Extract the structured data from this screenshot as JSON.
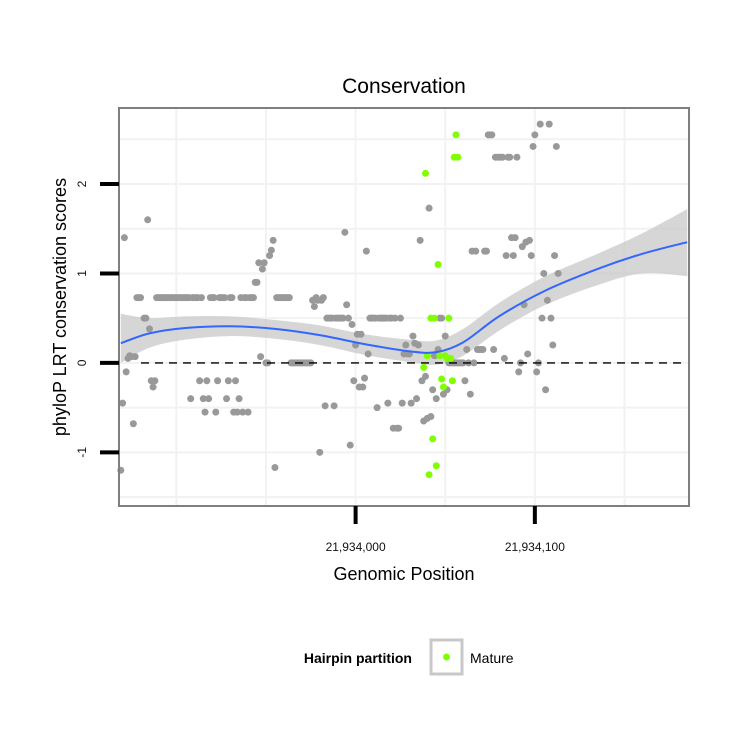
{
  "chart_data": {
    "type": "scatter",
    "title": "Conservation",
    "xlabel": "Genomic Position",
    "ylabel": "phyloP LRT conservation scores",
    "xlim": [
      21933868,
      21934186
    ],
    "ylim": [
      -1.6,
      2.85
    ],
    "x_ticks": [
      {
        "value": 21934000,
        "label": "21,934,000"
      },
      {
        "value": 21934100,
        "label": "21,934,100"
      }
    ],
    "y_ticks": [
      {
        "value": -1,
        "label": "-1"
      },
      {
        "value": 0,
        "label": "0"
      },
      {
        "value": 1,
        "label": "1"
      },
      {
        "value": 2,
        "label": "2"
      }
    ],
    "grid": true,
    "reference_line": {
      "y": 0,
      "style": "dashed"
    },
    "colors": {
      "other": "#999999",
      "mature": "#7fff00",
      "smooth": "#3366ff",
      "ribbon": "#c8c8c8",
      "panel_border": "#7f7f7f",
      "grid": "#f2f2f2"
    },
    "legend": {
      "title": "Hairpin partition",
      "position": "bottom",
      "entries": [
        {
          "label": "Mature",
          "color": "#7fff00"
        }
      ]
    },
    "series": [
      {
        "name": "",
        "color": "#999999",
        "points": [
          [
            21933869,
            -1.2
          ],
          [
            21933870,
            -0.45
          ],
          [
            21933871,
            1.4
          ],
          [
            21933872,
            -0.1
          ],
          [
            21933873,
            0.05
          ],
          [
            21933874,
            0.08
          ],
          [
            21933875,
            0.07
          ],
          [
            21933876,
            -0.68
          ],
          [
            21933877,
            0.07
          ],
          [
            21933878,
            0.73
          ],
          [
            21933879,
            0.73
          ],
          [
            21933880,
            0.73
          ],
          [
            21933882,
            0.5
          ],
          [
            21933883,
            0.5
          ],
          [
            21933884,
            1.6
          ],
          [
            21933885,
            0.38
          ],
          [
            21933886,
            -0.2
          ],
          [
            21933887,
            -0.27
          ],
          [
            21933888,
            -0.2
          ],
          [
            21933889,
            0.73
          ],
          [
            21933890,
            0.73
          ],
          [
            21933891,
            0.73
          ],
          [
            21933892,
            0.73
          ],
          [
            21933893,
            0.73
          ],
          [
            21933894,
            0.73
          ],
          [
            21933895,
            0.73
          ],
          [
            21933896,
            0.73
          ],
          [
            21933897,
            0.73
          ],
          [
            21933898,
            0.73
          ],
          [
            21933899,
            0.73
          ],
          [
            21933900,
            0.73
          ],
          [
            21933901,
            0.73
          ],
          [
            21933902,
            0.73
          ],
          [
            21933903,
            0.73
          ],
          [
            21933904,
            0.73
          ],
          [
            21933905,
            0.73
          ],
          [
            21933906,
            0.73
          ],
          [
            21933907,
            0.73
          ],
          [
            21933908,
            -0.4
          ],
          [
            21933909,
            0.73
          ],
          [
            21933910,
            0.73
          ],
          [
            21933911,
            0.73
          ],
          [
            21933912,
            0.73
          ],
          [
            21933913,
            -0.2
          ],
          [
            21933914,
            0.73
          ],
          [
            21933915,
            -0.4
          ],
          [
            21933916,
            -0.55
          ],
          [
            21933917,
            -0.2
          ],
          [
            21933918,
            -0.4
          ],
          [
            21933919,
            0.73
          ],
          [
            21933920,
            0.73
          ],
          [
            21933921,
            0.73
          ],
          [
            21933922,
            -0.55
          ],
          [
            21933923,
            -0.2
          ],
          [
            21933924,
            0.73
          ],
          [
            21933925,
            0.73
          ],
          [
            21933926,
            0.73
          ],
          [
            21933927,
            0.73
          ],
          [
            21933928,
            -0.4
          ],
          [
            21933929,
            -0.2
          ],
          [
            21933930,
            0.73
          ],
          [
            21933931,
            0.73
          ],
          [
            21933932,
            -0.55
          ],
          [
            21933933,
            -0.2
          ],
          [
            21933934,
            -0.55
          ],
          [
            21933935,
            -0.4
          ],
          [
            21933936,
            0.73
          ],
          [
            21933937,
            -0.55
          ],
          [
            21933938,
            0.73
          ],
          [
            21933939,
            0.73
          ],
          [
            21933940,
            -0.55
          ],
          [
            21933941,
            0.73
          ],
          [
            21933942,
            0.73
          ],
          [
            21933943,
            0.73
          ],
          [
            21933944,
            0.9
          ],
          [
            21933945,
            0.9
          ],
          [
            21933946,
            1.12
          ],
          [
            21933947,
            0.07
          ],
          [
            21933948,
            1.05
          ],
          [
            21933949,
            1.12
          ],
          [
            21933950,
            0.0
          ],
          [
            21933951,
            0.0
          ],
          [
            21933952,
            1.2
          ],
          [
            21933953,
            1.26
          ],
          [
            21933954,
            1.37
          ],
          [
            21933955,
            -1.17
          ],
          [
            21933956,
            0.73
          ],
          [
            21933957,
            0.73
          ],
          [
            21933958,
            0.73
          ],
          [
            21933959,
            0.73
          ],
          [
            21933960,
            0.73
          ],
          [
            21933961,
            0.73
          ],
          [
            21933962,
            0.73
          ],
          [
            21933963,
            0.73
          ],
          [
            21933964,
            0.0
          ],
          [
            21933965,
            0.0
          ],
          [
            21933966,
            0.0
          ],
          [
            21933967,
            0.0
          ],
          [
            21933968,
            0.0
          ],
          [
            21933969,
            0.0
          ],
          [
            21933970,
            0.0
          ],
          [
            21933971,
            0.0
          ],
          [
            21933972,
            0.0
          ],
          [
            21933973,
            0.0
          ],
          [
            21933974,
            0.0
          ],
          [
            21933975,
            0.0
          ],
          [
            21933976,
            0.7
          ],
          [
            21933977,
            0.63
          ],
          [
            21933978,
            0.73
          ],
          [
            21933979,
            0.7
          ],
          [
            21933980,
            -1.0
          ],
          [
            21933981,
            0.7
          ],
          [
            21933982,
            0.73
          ],
          [
            21933983,
            -0.48
          ],
          [
            21933984,
            0.5
          ],
          [
            21933985,
            0.5
          ],
          [
            21933986,
            0.5
          ],
          [
            21933987,
            0.5
          ],
          [
            21933988,
            -0.48
          ],
          [
            21933989,
            0.5
          ],
          [
            21933990,
            0.5
          ],
          [
            21933991,
            0.5
          ],
          [
            21933992,
            0.5
          ],
          [
            21933993,
            0.5
          ],
          [
            21933994,
            1.46
          ],
          [
            21933995,
            0.65
          ],
          [
            21933996,
            0.5
          ],
          [
            21933997,
            -0.92
          ],
          [
            21933998,
            0.43
          ],
          [
            21933999,
            -0.2
          ],
          [
            21934000,
            0.2
          ],
          [
            21934001,
            0.32
          ],
          [
            21934002,
            -0.27
          ],
          [
            21934003,
            0.32
          ],
          [
            21934004,
            -0.27
          ],
          [
            21934005,
            -0.17
          ],
          [
            21934006,
            1.25
          ],
          [
            21934007,
            0.1
          ],
          [
            21934008,
            0.5
          ],
          [
            21934009,
            0.5
          ],
          [
            21934010,
            0.5
          ],
          [
            21934011,
            0.5
          ],
          [
            21934012,
            -0.5
          ],
          [
            21934013,
            0.5
          ],
          [
            21934014,
            0.5
          ],
          [
            21934015,
            0.5
          ],
          [
            21934016,
            0.5
          ],
          [
            21934017,
            0.5
          ],
          [
            21934018,
            -0.45
          ],
          [
            21934019,
            0.5
          ],
          [
            21934020,
            0.5
          ],
          [
            21934021,
            -0.73
          ],
          [
            21934022,
            0.5
          ],
          [
            21934023,
            -0.73
          ],
          [
            21934024,
            -0.73
          ],
          [
            21934025,
            0.5
          ],
          [
            21934026,
            -0.45
          ],
          [
            21934027,
            0.1
          ],
          [
            21934028,
            0.2
          ],
          [
            21934029,
            0.1
          ],
          [
            21934030,
            0.1
          ],
          [
            21934031,
            -0.45
          ],
          [
            21934032,
            0.3
          ],
          [
            21934033,
            0.22
          ],
          [
            21934034,
            -0.4
          ],
          [
            21934035,
            0.2
          ],
          [
            21934036,
            1.37
          ],
          [
            21934037,
            -0.2
          ],
          [
            21934038,
            -0.65
          ],
          [
            21934039,
            -0.15
          ],
          [
            21934040,
            -0.62
          ],
          [
            21934041,
            1.73
          ],
          [
            21934042,
            -0.6
          ],
          [
            21934043,
            -0.3
          ],
          [
            21934044,
            0.08
          ],
          [
            21934045,
            -0.4
          ],
          [
            21934046,
            0.15
          ],
          [
            21934047,
            0.5
          ],
          [
            21934048,
            0.5
          ],
          [
            21934049,
            -0.35
          ],
          [
            21934050,
            0.3
          ],
          [
            21934051,
            -0.3
          ],
          [
            21934052,
            0.0
          ],
          [
            21934053,
            0.0
          ],
          [
            21934054,
            0.0
          ],
          [
            21934055,
            0.0
          ],
          [
            21934056,
            0.0
          ],
          [
            21934057,
            0.0
          ],
          [
            21934058,
            0.0
          ],
          [
            21934059,
            0.0
          ],
          [
            21934060,
            0.0
          ],
          [
            21934061,
            -0.2
          ],
          [
            21934062,
            0.15
          ],
          [
            21934063,
            0.0
          ],
          [
            21934064,
            -0.35
          ],
          [
            21934065,
            1.25
          ],
          [
            21934066,
            0.0
          ],
          [
            21934067,
            1.25
          ],
          [
            21934068,
            0.15
          ],
          [
            21934069,
            0.15
          ],
          [
            21934070,
            0.15
          ],
          [
            21934071,
            0.15
          ],
          [
            21934072,
            1.25
          ],
          [
            21934073,
            1.25
          ],
          [
            21934074,
            2.55
          ],
          [
            21934075,
            2.55
          ],
          [
            21934076,
            2.55
          ],
          [
            21934077,
            0.15
          ],
          [
            21934078,
            2.3
          ],
          [
            21934079,
            2.3
          ],
          [
            21934080,
            2.3
          ],
          [
            21934081,
            2.3
          ],
          [
            21934082,
            2.3
          ],
          [
            21934083,
            0.05
          ],
          [
            21934084,
            1.2
          ],
          [
            21934085,
            2.3
          ],
          [
            21934086,
            2.3
          ],
          [
            21934087,
            1.4
          ],
          [
            21934088,
            1.2
          ],
          [
            21934089,
            1.4
          ],
          [
            21934090,
            2.3
          ],
          [
            21934091,
            -0.1
          ],
          [
            21934092,
            0.0
          ],
          [
            21934093,
            1.3
          ],
          [
            21934094,
            0.65
          ],
          [
            21934095,
            1.35
          ],
          [
            21934096,
            0.1
          ],
          [
            21934097,
            1.37
          ],
          [
            21934098,
            1.2
          ],
          [
            21934099,
            2.42
          ],
          [
            21934100,
            2.55
          ],
          [
            21934101,
            -0.1
          ],
          [
            21934102,
            0.0
          ],
          [
            21934103,
            2.67
          ],
          [
            21934104,
            0.5
          ],
          [
            21934105,
            1.0
          ],
          [
            21934106,
            -0.3
          ],
          [
            21934107,
            0.7
          ],
          [
            21934108,
            2.67
          ],
          [
            21934109,
            0.5
          ],
          [
            21934110,
            0.2
          ],
          [
            21934111,
            1.2
          ],
          [
            21934112,
            2.42
          ],
          [
            21934113,
            1.0
          ]
        ]
      },
      {
        "name": "Mature",
        "color": "#7fff00",
        "points": [
          [
            21934038,
            -0.05
          ],
          [
            21934039,
            2.12
          ],
          [
            21934040,
            0.08
          ],
          [
            21934041,
            -1.25
          ],
          [
            21934042,
            0.5
          ],
          [
            21934043,
            -0.85
          ],
          [
            21934044,
            0.5
          ],
          [
            21934045,
            -1.15
          ],
          [
            21934046,
            1.1
          ],
          [
            21934047,
            0.08
          ],
          [
            21934048,
            -0.18
          ],
          [
            21934049,
            -0.27
          ],
          [
            21934050,
            0.08
          ],
          [
            21934051,
            0.05
          ],
          [
            21934052,
            0.5
          ],
          [
            21934053,
            0.05
          ],
          [
            21934054,
            -0.2
          ],
          [
            21934055,
            2.3
          ],
          [
            21934056,
            2.55
          ],
          [
            21934057,
            2.3
          ]
        ]
      }
    ],
    "smooth_curve": [
      {
        "x": 21933869,
        "y": 0.22,
        "lo": 0.0,
        "hi": 0.55
      },
      {
        "x": 21933885,
        "y": 0.33,
        "lo": 0.17,
        "hi": 0.5
      },
      {
        "x": 21933905,
        "y": 0.39,
        "lo": 0.26,
        "hi": 0.52
      },
      {
        "x": 21933930,
        "y": 0.41,
        "lo": 0.3,
        "hi": 0.52
      },
      {
        "x": 21933955,
        "y": 0.38,
        "lo": 0.27,
        "hi": 0.48
      },
      {
        "x": 21933980,
        "y": 0.31,
        "lo": 0.2,
        "hi": 0.42
      },
      {
        "x": 21934005,
        "y": 0.21,
        "lo": 0.09,
        "hi": 0.32
      },
      {
        "x": 21934030,
        "y": 0.13,
        "lo": 0.01,
        "hi": 0.26
      },
      {
        "x": 21934045,
        "y": 0.12,
        "lo": -0.02,
        "hi": 0.25
      },
      {
        "x": 21934060,
        "y": 0.23,
        "lo": 0.08,
        "hi": 0.38
      },
      {
        "x": 21934080,
        "y": 0.52,
        "lo": 0.36,
        "hi": 0.67
      },
      {
        "x": 21934105,
        "y": 0.8,
        "lo": 0.64,
        "hi": 0.96
      },
      {
        "x": 21934135,
        "y": 1.05,
        "lo": 0.87,
        "hi": 1.22
      },
      {
        "x": 21934160,
        "y": 1.22,
        "lo": 1.0,
        "hi": 1.45
      },
      {
        "x": 21934185,
        "y": 1.35,
        "lo": 0.97,
        "hi": 1.72
      }
    ]
  }
}
